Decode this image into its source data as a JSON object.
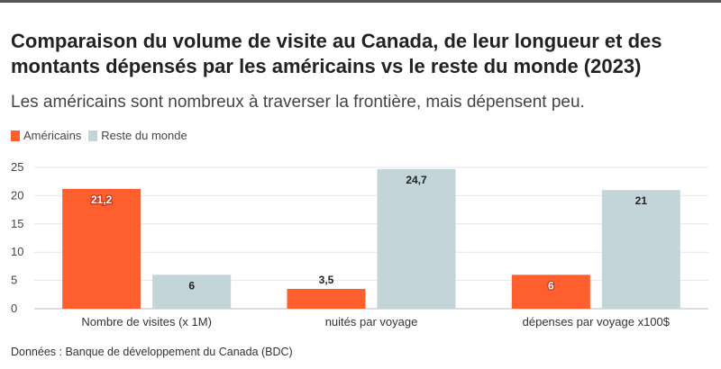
{
  "chart_data": {
    "type": "bar",
    "title": "Comparaison du volume de visite au Canada, de leur longueur et des montants dépensés par les américains vs le reste du monde (2023)",
    "subtitle": "Les américains sont nombreux à traverser la frontière, mais dépensent peu.",
    "categories": [
      "Nombre de visites (x 1M)",
      "nuités par voyage",
      "dépenses par voyage x100$"
    ],
    "series": [
      {
        "name": "Américains",
        "values": [
          21.2,
          3.5,
          6
        ],
        "labels": [
          "21,2",
          "3,5",
          "6"
        ],
        "color": "#ff5f2e"
      },
      {
        "name": "Reste du monde",
        "values": [
          6,
          24.7,
          21
        ],
        "labels": [
          "6",
          "24,7",
          "21"
        ],
        "color": "#c4d5d9"
      }
    ],
    "ylim": [
      0,
      25
    ],
    "yticks": [
      0,
      5,
      10,
      15,
      20,
      25
    ],
    "grid": true,
    "legend": "top-left",
    "source": "Données : Banque de développement du Canada (BDC)"
  }
}
